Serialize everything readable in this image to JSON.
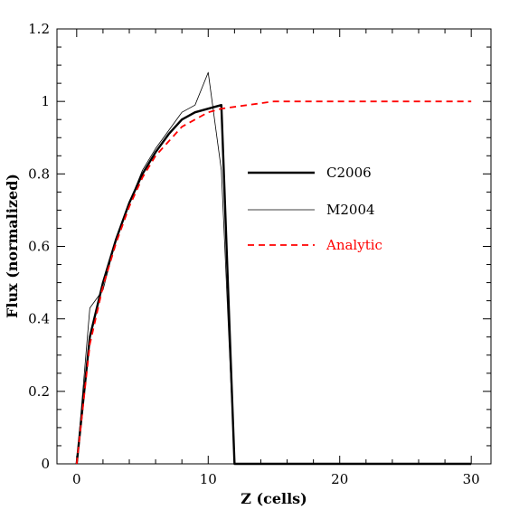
{
  "chart_data": {
    "type": "line",
    "title": "",
    "xlabel": "Z (cells)",
    "ylabel": "Flux (normalized)",
    "xlim": [
      -1.5,
      31.5
    ],
    "ylim": [
      0,
      1.2
    ],
    "xticks": [
      0,
      10,
      20,
      30
    ],
    "yticks": [
      0,
      0.2,
      0.4,
      0.6,
      0.8,
      1,
      1.2
    ],
    "ytick_labels": [
      "0",
      "0.2",
      "0.4",
      "0.6",
      "0.8",
      "1",
      "1.2"
    ],
    "grid": false,
    "legend_position": "center-right",
    "series": [
      {
        "name": "C2006",
        "color": "#000000",
        "style": "solid-thick",
        "x": [
          0,
          1,
          2,
          3,
          4,
          5,
          6,
          7,
          8,
          9,
          10,
          11,
          12,
          13,
          14,
          15,
          16,
          17,
          18,
          19,
          20,
          21,
          22,
          23,
          24,
          25,
          26,
          27,
          28,
          29,
          30
        ],
        "y": [
          0.0,
          0.35,
          0.5,
          0.62,
          0.72,
          0.8,
          0.86,
          0.91,
          0.95,
          0.97,
          0.98,
          0.99,
          0.0,
          0,
          0,
          0,
          0,
          0,
          0,
          0,
          0,
          0,
          0,
          0,
          0,
          0,
          0,
          0,
          0,
          0,
          0
        ]
      },
      {
        "name": "M2004",
        "color": "#000000",
        "style": "solid-thin",
        "x": [
          0,
          1,
          2,
          3,
          4,
          5,
          6,
          7,
          8,
          9,
          10,
          11,
          12,
          13,
          14,
          15,
          16,
          17,
          18,
          19,
          20,
          21,
          22,
          23,
          24,
          25,
          26,
          27,
          28,
          29,
          30
        ],
        "y": [
          0.0,
          0.43,
          0.48,
          0.62,
          0.72,
          0.81,
          0.87,
          0.92,
          0.97,
          0.99,
          1.08,
          0.81,
          0.0,
          0,
          0,
          0,
          0,
          0,
          0,
          0,
          0,
          0,
          0,
          0,
          0,
          0,
          0,
          0,
          0,
          0,
          0
        ]
      },
      {
        "name": "Analytic",
        "color": "#ff0000",
        "style": "dashed",
        "x": [
          0,
          1,
          2,
          3,
          4,
          5,
          6,
          7,
          8,
          9,
          10,
          11,
          12,
          13,
          14,
          15,
          16,
          17,
          18,
          19,
          20,
          21,
          22,
          23,
          24,
          25,
          26,
          27,
          28,
          29,
          30
        ],
        "y": [
          0.0,
          0.33,
          0.49,
          0.61,
          0.71,
          0.79,
          0.85,
          0.89,
          0.93,
          0.95,
          0.97,
          0.98,
          0.985,
          0.99,
          0.995,
          1.0,
          1.0,
          1.0,
          1.0,
          1.0,
          1.0,
          1.0,
          1.0,
          1.0,
          1.0,
          1.0,
          1.0,
          1.0,
          1.0,
          1.0,
          1.0
        ]
      }
    ]
  }
}
